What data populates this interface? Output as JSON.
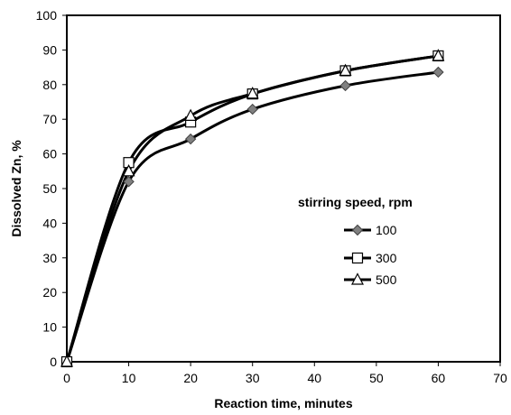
{
  "chart_data": {
    "type": "line",
    "title": "",
    "xlabel": "Reaction time, minutes",
    "ylabel": "Dissolved Zn, %",
    "xlim": [
      0,
      70
    ],
    "ylim": [
      0,
      100
    ],
    "xticks": [
      0,
      10,
      20,
      30,
      40,
      50,
      60,
      70
    ],
    "yticks": [
      0,
      10,
      20,
      30,
      40,
      50,
      60,
      70,
      80,
      90,
      100
    ],
    "grid": false,
    "legend": {
      "title": "stirring speed, rpm",
      "placement": "right-center"
    },
    "series": [
      {
        "name": "100",
        "marker": "diamond",
        "marker_fill": "#808080",
        "line_color": "#000000",
        "points": [
          {
            "x": 0,
            "y": 0
          },
          {
            "x": 10,
            "y": 52
          },
          {
            "x": 20,
            "y": 64.3
          },
          {
            "x": 30,
            "y": 72.9
          },
          {
            "x": 45,
            "y": 79.7
          },
          {
            "x": 60,
            "y": 83.6
          }
        ]
      },
      {
        "name": "300",
        "marker": "square",
        "marker_fill": "#ffffff",
        "line_color": "#000000",
        "points": [
          {
            "x": 0,
            "y": 0
          },
          {
            "x": 10,
            "y": 57.5
          },
          {
            "x": 20,
            "y": 69.2
          },
          {
            "x": 30,
            "y": 77.3
          },
          {
            "x": 45,
            "y": 84
          },
          {
            "x": 60,
            "y": 88.3
          }
        ]
      },
      {
        "name": "500",
        "marker": "triangle",
        "marker_fill": "#ffffff",
        "line_color": "#000000",
        "points": [
          {
            "x": 0,
            "y": 0
          },
          {
            "x": 10,
            "y": 55
          },
          {
            "x": 20,
            "y": 71
          },
          {
            "x": 30,
            "y": 77.4
          },
          {
            "x": 45,
            "y": 84
          },
          {
            "x": 60,
            "y": 88.3
          }
        ]
      }
    ]
  }
}
